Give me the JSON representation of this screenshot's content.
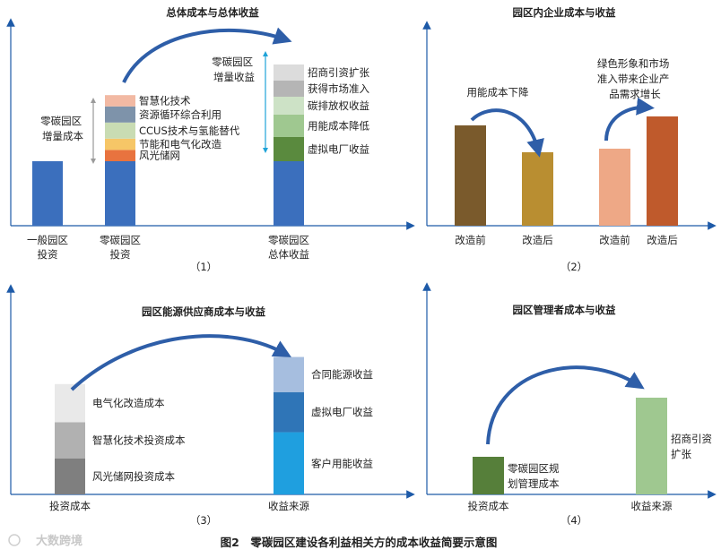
{
  "figure_caption": "图2　零碳园区建设各利益相关方的成本收益简要示意图",
  "watermark": "大数跨境",
  "chart_data": [
    {
      "type": "bar",
      "id": "p1",
      "title": "总体成本与总体收益",
      "panel_label": "（1）",
      "categories": [
        "一般园区\n投资",
        "零碳园区\n投资",
        "零碳园区\n总体收益"
      ],
      "stacks": [
        [
          {
            "value": 40,
            "color": "#3b6fbd"
          }
        ],
        [
          {
            "name": "",
            "value": 40,
            "color": "#3b6fbd"
          },
          {
            "name": "风光储网",
            "value": 7,
            "color": "#e8733f"
          },
          {
            "name": "节能和电气化改造",
            "value": 7,
            "color": "#f6c667"
          },
          {
            "name": "CCUS技术与氢能替代",
            "value": 10,
            "color": "#c9dcb3"
          },
          {
            "name": "资源循环综合利用",
            "value": 10,
            "color": "#7e93aa"
          },
          {
            "name": "智慧化技术",
            "value": 7,
            "color": "#f2b9a3"
          }
        ],
        [
          {
            "name": "",
            "value": 40,
            "color": "#3b6fbd"
          },
          {
            "name": "虚拟电厂收益",
            "value": 15,
            "color": "#5a8a3e"
          },
          {
            "name": "用能成本降低",
            "value": 14,
            "color": "#9fc890"
          },
          {
            "name": "碳排放权收益",
            "value": 11,
            "color": "#cde2c6"
          },
          {
            "name": "获得市场准入",
            "value": 10,
            "color": "#b5b5b5"
          },
          {
            "name": "招商引资扩张",
            "value": 10,
            "color": "#dcdcdc"
          }
        ]
      ],
      "annotations": {
        "cost_bracket": "零碳园区\n增量成本",
        "revenue_bracket": "零碳园区\n增量收益"
      }
    },
    {
      "type": "bar",
      "id": "p2",
      "title": "园区内企业成本与收益",
      "panel_label": "（2）",
      "categories": [
        "改造前",
        "改造后",
        "改造前",
        "改造后"
      ],
      "values": [
        56,
        41,
        43,
        61
      ],
      "colors": [
        "#7a5a2c",
        "#b98e31",
        "#eea886",
        "#bf5a2c"
      ],
      "annotations": {
        "left": "用能成本下降",
        "right": "绿色形象和市场\n准入带来企业产\n品需求增长"
      }
    },
    {
      "type": "bar",
      "id": "p3",
      "title": "园区能源供应商成本与收益",
      "panel_label": "（3）",
      "categories": [
        "投资成本",
        "收益来源"
      ],
      "stacks": [
        [
          {
            "name": "风光储网投资成本",
            "value": 36,
            "color": "#7f7f7f"
          },
          {
            "name": "智慧化技术投资成本",
            "value": 36,
            "color": "#b1b1b1"
          },
          {
            "name": "电气化改造成本",
            "value": 38,
            "color": "#e9e9e9"
          }
        ],
        [
          {
            "name": "客户用能收益",
            "value": 62,
            "color": "#1f9fdf"
          },
          {
            "name": "虚拟电厂收益",
            "value": 40,
            "color": "#2f75b7"
          },
          {
            "name": "合同能源收益",
            "value": 35,
            "color": "#a6bedf"
          }
        ]
      ]
    },
    {
      "type": "bar",
      "id": "p4",
      "title": "园区管理者成本与收益",
      "panel_label": "（4）",
      "categories": [
        "投资成本",
        "收益来源"
      ],
      "stacks": [
        [
          {
            "name": "零碳园区规\n划管理成本",
            "value": 35,
            "color": "#567f3a"
          }
        ],
        [
          {
            "name": "招商引资\n扩张",
            "value": 90,
            "color": "#9fc890"
          }
        ]
      ]
    }
  ]
}
